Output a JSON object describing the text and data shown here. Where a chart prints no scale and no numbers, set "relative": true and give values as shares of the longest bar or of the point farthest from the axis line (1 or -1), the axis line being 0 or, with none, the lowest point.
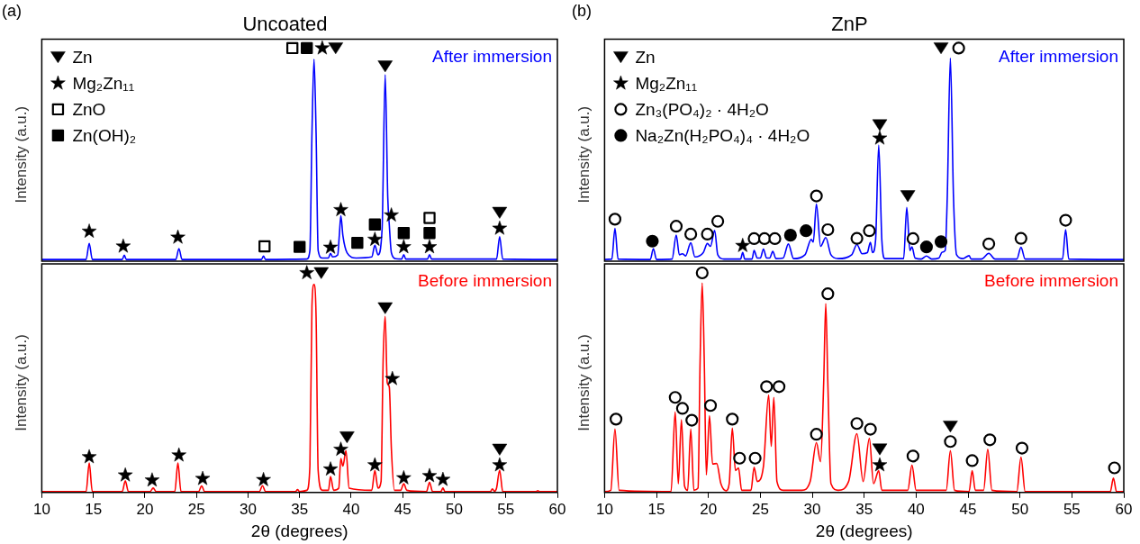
{
  "chart_data": [
    {
      "type": "line",
      "title": "Uncoated",
      "ylabel": "Intensity (a.u.)",
      "annotations": [
        "(a)"
      ],
      "xlim": [
        10,
        60
      ],
      "xticks": [
        10,
        15,
        20,
        25,
        30,
        35,
        40,
        45,
        50,
        55,
        60
      ],
      "relative": true,
      "tick_labels": false,
      "legend": "top left",
      "series": [
        {
          "name": "After immersion",
          "color": "#0000ff",
          "x": [
            10,
            14.3,
            14.6,
            14.9,
            17.8,
            18.0,
            18.2,
            23.0,
            23.3,
            23.6,
            31.3,
            31.5,
            31.7,
            35.7,
            36.0,
            36.2,
            36.4,
            36.6,
            36.8,
            37.2,
            37.8,
            38.0,
            38.2,
            38.7,
            38.85,
            39.0,
            39.2,
            39.6,
            40.5,
            42.0,
            42.3,
            42.6,
            43.0,
            43.3,
            43.55,
            43.7,
            43.9,
            44.3,
            44.9,
            45.1,
            45.3,
            47.4,
            47.6,
            47.8,
            54.1,
            54.4,
            54.7,
            60
          ],
          "values": [
            0.008,
            0.008,
            0.083,
            0.008,
            0.008,
            0.028,
            0.008,
            0.008,
            0.059,
            0.008,
            0.008,
            0.024,
            0.008,
            0.01,
            0.05,
            0.6,
            0.948,
            0.6,
            0.05,
            0.015,
            0.015,
            0.037,
            0.02,
            0.03,
            0.12,
            0.213,
            0.12,
            0.04,
            0.015,
            0.02,
            0.075,
            0.03,
            0.15,
            0.875,
            0.3,
            0.17,
            0.04,
            0.012,
            0.01,
            0.03,
            0.01,
            0.01,
            0.03,
            0.01,
            0.01,
            0.115,
            0.01,
            0.008
          ]
        },
        {
          "type": "scatter",
          "name": "Zn",
          "marker": "triangle",
          "color": "#000000",
          "x": [
            38.5,
            43.3,
            54.4
          ],
          "values": [
            1.0,
            0.915,
            0.228
          ]
        },
        {
          "type": "scatter",
          "name": "Mg₂Zn₁₁",
          "marker": "star",
          "color": "#000000",
          "x": [
            14.6,
            17.9,
            23.2,
            37.2,
            38.0,
            39.0,
            42.3,
            43.9,
            45.1,
            47.6,
            54.4
          ],
          "values": [
            0.14,
            0.07,
            0.112,
            1.0,
            0.065,
            0.241,
            0.102,
            0.216,
            0.067,
            0.067,
            0.154
          ]
        },
        {
          "type": "scatter",
          "name": "ZnO",
          "marker": "square",
          "color": "#ffffff",
          "x": [
            31.6,
            34.3,
            47.6
          ],
          "values": [
            0.07,
            1.0,
            0.203
          ]
        },
        {
          "type": "scatter",
          "name": "Zn(OH)₂",
          "marker": "square",
          "color": "#000000",
          "x": [
            35.0,
            35.7,
            40.6,
            42.3,
            45.1,
            47.6
          ],
          "values": [
            0.067,
            1.0,
            0.086,
            0.172,
            0.132,
            0.132
          ]
        }
      ]
    },
    {
      "type": "line",
      "title": "ZnP",
      "ylabel": "Intensity (a.u.)",
      "annotations": [
        "(b)"
      ],
      "xlim": [
        10,
        60
      ],
      "xticks": [
        10,
        15,
        20,
        25,
        30,
        35,
        40,
        45,
        50,
        55,
        60
      ],
      "relative": true,
      "tick_labels": false,
      "legend": "top left",
      "series": [
        {
          "name": "After immersion",
          "color": "#0000ff",
          "x": [
            10,
            10.7,
            11.0,
            11.3,
            14.4,
            14.7,
            15.0,
            16.5,
            16.9,
            17.2,
            17.5,
            17.8,
            18.3,
            18.7,
            19.5,
            19.9,
            20.2,
            20.6,
            20.9,
            21.5,
            23.1,
            23.3,
            23.5,
            24.2,
            24.4,
            24.7,
            25.0,
            25.3,
            25.6,
            25.9,
            26.2,
            26.5,
            27.2,
            27.7,
            28.2,
            29.3,
            29.9,
            30.1,
            30.4,
            30.8,
            31.3,
            31.8,
            32.5,
            33.8,
            34.3,
            34.8,
            35.3,
            35.6,
            35.8,
            36.1,
            36.4,
            36.7,
            37.0,
            38.8,
            39.1,
            39.4,
            39.6,
            39.9,
            40.5,
            41.0,
            41.5,
            42.2,
            42.5,
            42.8,
            43.0,
            43.3,
            43.6,
            43.9,
            44.5,
            45.1,
            45.3,
            46.3,
            47.0,
            47.6,
            49.7,
            50.1,
            50.5,
            54.1,
            54.4,
            54.7,
            60
          ],
          "values": [
            0.008,
            0.01,
            0.154,
            0.01,
            0.008,
            0.059,
            0.008,
            0.01,
            0.122,
            0.03,
            0.035,
            0.025,
            0.086,
            0.02,
            0.04,
            0.083,
            0.07,
            0.145,
            0.03,
            0.01,
            0.01,
            0.041,
            0.01,
            0.01,
            0.05,
            0.015,
            0.015,
            0.057,
            0.015,
            0.015,
            0.046,
            0.012,
            0.015,
            0.081,
            0.012,
            0.03,
            0.102,
            0.09,
            0.268,
            0.07,
            0.111,
            0.03,
            0.012,
            0.03,
            0.078,
            0.035,
            0.04,
            0.089,
            0.04,
            0.1,
            0.545,
            0.1,
            0.012,
            0.012,
            0.252,
            0.05,
            0.067,
            0.015,
            0.01,
            0.024,
            0.01,
            0.015,
            0.042,
            0.05,
            0.3,
            0.953,
            0.3,
            0.03,
            0.012,
            0.026,
            0.01,
            0.01,
            0.037,
            0.01,
            0.01,
            0.065,
            0.01,
            0.01,
            0.148,
            0.01,
            0.008
          ]
        },
        {
          "type": "scatter",
          "name": "Zn",
          "marker": "triangle",
          "color": "#000000",
          "x": [
            36.5,
            39.2,
            42.4
          ],
          "values": [
            0.639,
            0.306,
            1.0
          ]
        },
        {
          "type": "scatter",
          "name": "Mg₂Zn₁₁",
          "marker": "star",
          "color": "#000000",
          "x": [
            23.3,
            36.5
          ],
          "values": [
            0.073,
            0.577
          ]
        },
        {
          "type": "scatter",
          "name": "Zn₃(PO₄)₂ · 4H₂O",
          "marker": "circle",
          "color": "#ffffff",
          "x": [
            11.0,
            16.9,
            18.3,
            19.9,
            20.9,
            24.4,
            25.4,
            26.4,
            30.4,
            31.5,
            34.3,
            35.5,
            39.7,
            44.1,
            47.0,
            50.1,
            54.4
          ],
          "values": [
            0.197,
            0.164,
            0.127,
            0.127,
            0.187,
            0.106,
            0.106,
            0.106,
            0.306,
            0.148,
            0.107,
            0.143,
            0.106,
            1.0,
            0.081,
            0.107,
            0.192
          ]
        },
        {
          "type": "scatter",
          "name": "Na₂Zn(H₂PO₄)₄ · 4H₂O",
          "marker": "circle",
          "color": "#000000",
          "x": [
            14.6,
            27.9,
            29.4,
            41.0,
            42.4
          ],
          "values": [
            0.094,
            0.122,
            0.143,
            0.067,
            0.091
          ]
        }
      ]
    },
    {
      "type": "line",
      "ylabel": "Intensity (a.u.)",
      "xlabel": "2θ (degrees)",
      "xlim": [
        10,
        60
      ],
      "xticks": [
        10,
        15,
        20,
        25,
        30,
        35,
        40,
        45,
        50,
        55,
        60
      ],
      "relative": true,
      "tick_labels": "x",
      "series": [
        {
          "name": "Before immersion",
          "color": "#ff0000",
          "x": [
            10,
            14.3,
            14.6,
            14.9,
            17.8,
            18.1,
            18.4,
            20.5,
            20.8,
            21.1,
            22.9,
            23.2,
            23.5,
            25.2,
            25.5,
            25.8,
            31.1,
            31.4,
            31.7,
            34.6,
            34.8,
            35.0,
            35.7,
            36.0,
            36.2,
            36.4,
            36.6,
            36.8,
            37.2,
            37.8,
            38.0,
            38.3,
            38.8,
            39.0,
            39.2,
            39.5,
            39.8,
            42.0,
            42.3,
            42.6,
            42.9,
            43.1,
            43.3,
            43.5,
            43.7,
            43.9,
            44.2,
            44.8,
            45.1,
            45.4,
            47.3,
            47.6,
            47.9,
            48.7,
            48.9,
            49.1,
            53.5,
            53.7,
            53.9,
            54.1,
            54.4,
            54.7,
            57.9,
            58.1,
            58.3,
            60
          ],
          "values": [
            0.004,
            0.004,
            0.134,
            0.004,
            0.004,
            0.053,
            0.004,
            0.004,
            0.02,
            0.004,
            0.004,
            0.134,
            0.004,
            0.004,
            0.03,
            0.004,
            0.004,
            0.031,
            0.004,
            0.004,
            0.013,
            0.004,
            0.01,
            0.12,
            0.85,
            0.947,
            0.8,
            0.1,
            0.01,
            0.01,
            0.073,
            0.01,
            0.02,
            0.155,
            0.12,
            0.191,
            0.02,
            0.01,
            0.1,
            0.02,
            0.05,
            0.6,
            0.802,
            0.5,
            0.48,
            0.2,
            0.01,
            0.01,
            0.04,
            0.01,
            0.004,
            0.046,
            0.004,
            0.004,
            0.02,
            0.004,
            0.004,
            0.016,
            0.006,
            0.02,
            0.102,
            0.004,
            0.004,
            0.008,
            0.004,
            0.004
          ]
        },
        {
          "type": "scatter",
          "marker": "triangle",
          "color": "#000000",
          "x": [
            37.1,
            39.6,
            43.3,
            54.4
          ],
          "values": [
            1.0,
            0.252,
            0.84,
            0.196
          ]
        },
        {
          "type": "scatter",
          "marker": "star",
          "color": "#000000",
          "x": [
            14.6,
            18.1,
            20.7,
            23.3,
            25.6,
            31.5,
            35.7,
            38.0,
            39.0,
            42.3,
            44.0,
            45.1,
            47.6,
            48.9,
            54.4
          ],
          "values": [
            0.162,
            0.079,
            0.056,
            0.17,
            0.063,
            0.058,
            1.0,
            0.106,
            0.196,
            0.125,
            0.518,
            0.066,
            0.076,
            0.059,
            0.125
          ]
        }
      ]
    },
    {
      "type": "line",
      "ylabel": "Intensity (a.u.)",
      "xlabel": "2θ (degrees)",
      "xlim": [
        10,
        60
      ],
      "xticks": [
        10,
        15,
        20,
        25,
        30,
        35,
        40,
        45,
        50,
        55,
        60
      ],
      "relative": true,
      "tick_labels": "x",
      "series": [
        {
          "name": "Before immersion",
          "color": "#ff0000",
          "x": [
            10,
            10.6,
            11.0,
            11.4,
            16.4,
            16.8,
            17.1,
            17.4,
            17.7,
            18.0,
            18.3,
            18.6,
            19.0,
            19.2,
            19.4,
            19.6,
            19.8,
            20.1,
            20.4,
            20.8,
            21.2,
            21.7,
            22.0,
            22.3,
            22.6,
            22.9,
            23.2,
            24.1,
            24.4,
            24.7,
            25.3,
            25.8,
            26.05,
            26.3,
            26.6,
            27.2,
            29.0,
            29.8,
            30.4,
            30.8,
            31.1,
            31.3,
            31.5,
            31.8,
            32.5,
            33.5,
            34.3,
            34.9,
            35.5,
            35.9,
            36.4,
            36.7,
            39.2,
            39.6,
            40.0,
            42.9,
            43.3,
            43.7,
            45.1,
            45.4,
            45.7,
            46.5,
            46.9,
            47.3,
            49.7,
            50.1,
            50.5,
            58.7,
            59.0,
            59.3,
            60
          ],
          "values": [
            0.004,
            0.01,
            0.289,
            0.01,
            0.004,
            0.367,
            0.04,
            0.331,
            0.03,
            0.01,
            0.289,
            0.01,
            0.02,
            0.6,
            0.954,
            0.6,
            0.08,
            0.35,
            0.13,
            0.132,
            0.04,
            0.008,
            0.04,
            0.293,
            0.1,
            0.112,
            0.01,
            0.01,
            0.115,
            0.05,
            0.12,
            0.444,
            0.21,
            0.433,
            0.05,
            0.01,
            0.01,
            0.05,
            0.227,
            0.14,
            0.5,
            0.86,
            0.5,
            0.04,
            0.01,
            0.05,
            0.268,
            0.05,
            0.247,
            0.04,
            0.099,
            0.01,
            0.01,
            0.125,
            0.01,
            0.01,
            0.191,
            0.01,
            0.004,
            0.099,
            0.01,
            0.01,
            0.197,
            0.01,
            0.004,
            0.161,
            0.004,
            0.004,
            0.066,
            0.004,
            0.004
          ]
        },
        {
          "type": "scatter",
          "marker": "triangle",
          "color": "#000000",
          "x": [
            36.5,
            43.3
          ],
          "values": [
            0.197,
            0.301
          ]
        },
        {
          "type": "scatter",
          "marker": "star",
          "color": "#000000",
          "x": [
            36.5
          ],
          "values": [
            0.125
          ]
        },
        {
          "type": "scatter",
          "marker": "circle",
          "color": "#ffffff",
          "x": [
            11.1,
            16.8,
            17.5,
            18.4,
            19.4,
            20.2,
            22.3,
            23.0,
            24.5,
            25.6,
            26.8,
            30.4,
            31.5,
            34.3,
            35.6,
            39.7,
            43.3,
            45.4,
            47.1,
            50.2,
            59.1
          ],
          "values": [
            0.334,
            0.433,
            0.383,
            0.329,
            1.0,
            0.396,
            0.334,
            0.156,
            0.156,
            0.482,
            0.482,
            0.265,
            0.905,
            0.314,
            0.288,
            0.166,
            0.232,
            0.145,
            0.24,
            0.202,
            0.112
          ]
        }
      ]
    }
  ]
}
